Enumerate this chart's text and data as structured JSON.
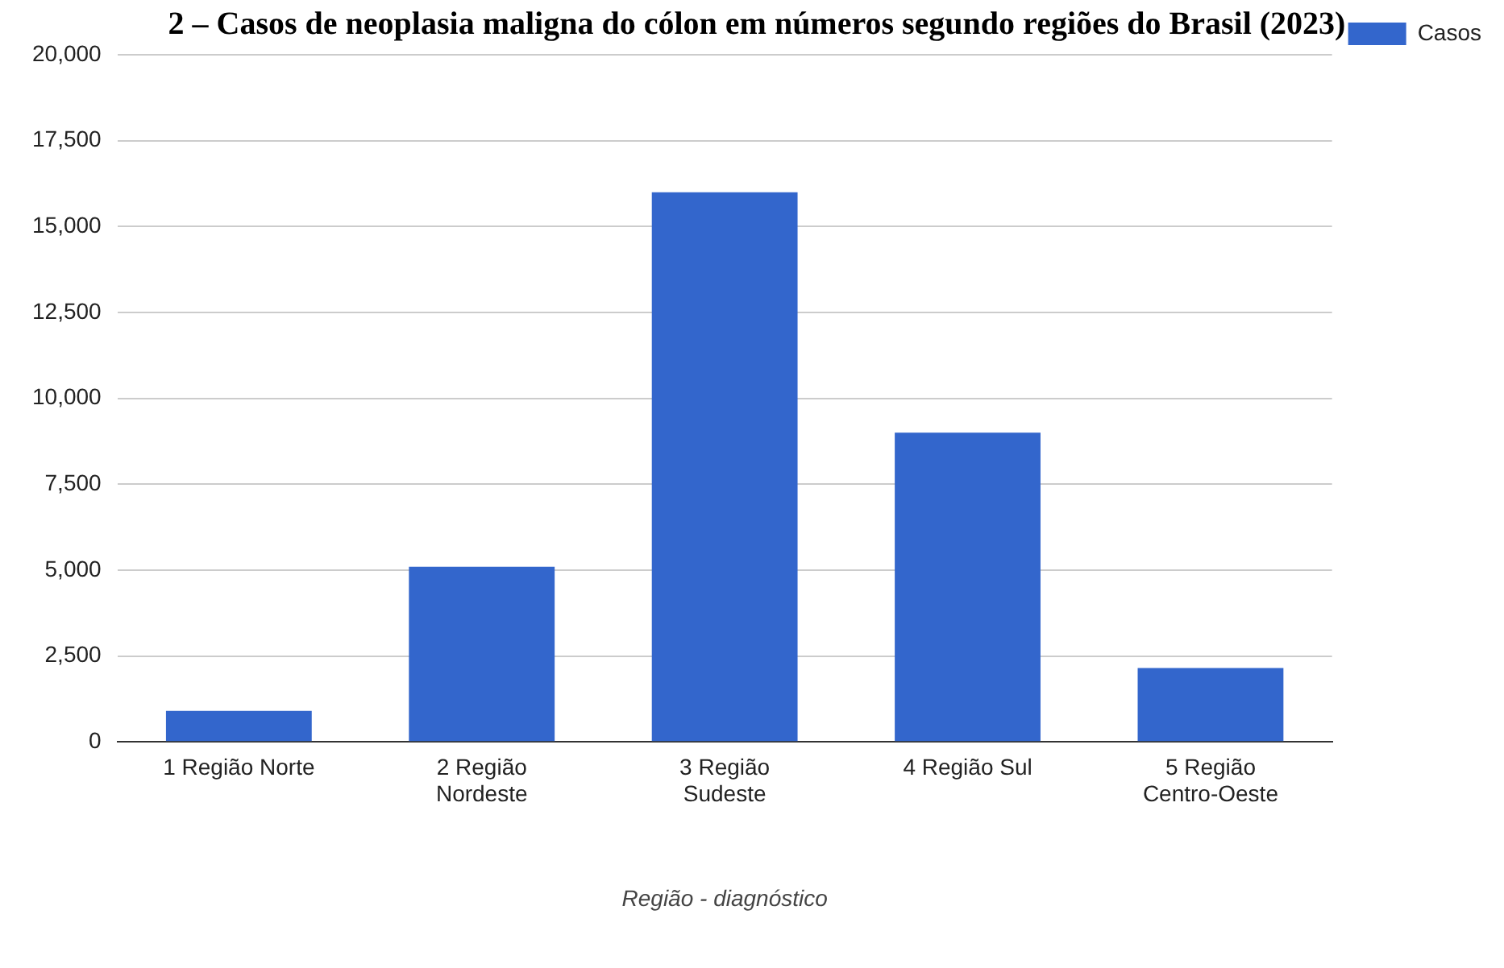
{
  "chart_data": {
    "type": "bar",
    "title": "2 – Casos de neoplasia maligna do cólon em números segundo regiões do Brasil (2023)",
    "xlabel": "Região - diagnóstico",
    "categories": [
      "1 Região Norte",
      "2 Região Nordeste",
      "3 Região Sudeste",
      "4 Região Sul",
      "5 Região Centro-Oeste"
    ],
    "series": [
      {
        "name": "Casos",
        "color": "#3366cc",
        "values": [
          900,
          5100,
          16000,
          9000,
          2150
        ]
      }
    ],
    "ylim": [
      0,
      20000
    ],
    "yticks": [
      0,
      {
        "value": 2500,
        "label": "2,500"
      },
      {
        "value": 5000,
        "label": "5,000"
      },
      {
        "value": 7500,
        "label": "7,500"
      },
      {
        "value": 10000,
        "label": "10,000"
      },
      {
        "value": 12500,
        "label": "12,500"
      },
      {
        "value": 15000,
        "label": "15,000"
      },
      {
        "value": 17500,
        "label": "17,500"
      },
      {
        "value": 20000,
        "label": "20,000"
      }
    ],
    "grid": "y",
    "legend": "top right"
  }
}
